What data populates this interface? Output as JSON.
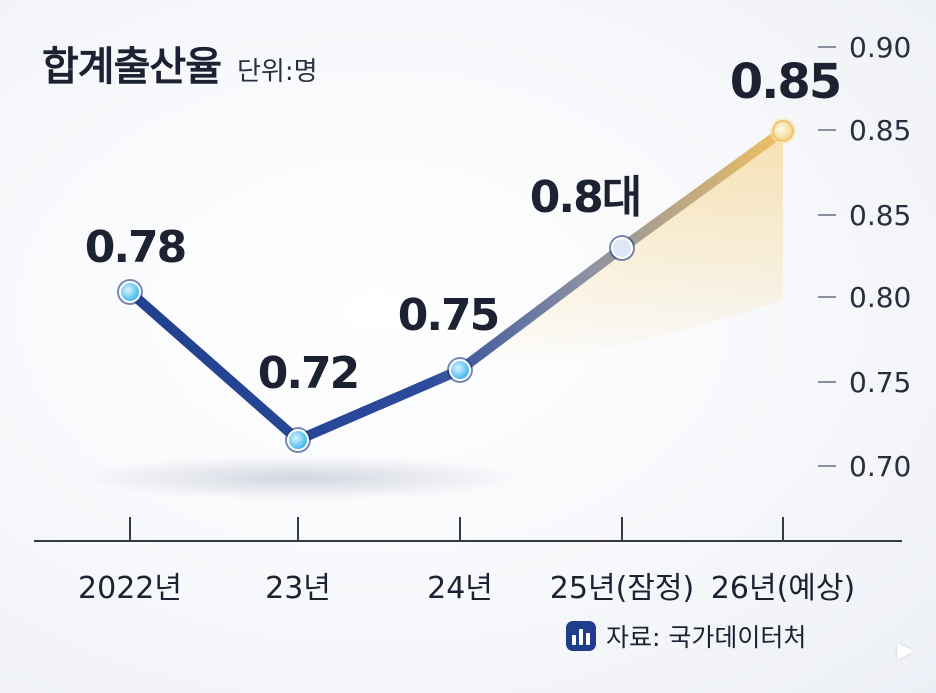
{
  "title": "합계출산율",
  "unit": "단위:명",
  "source": {
    "icon": "chart-bars-icon",
    "text": "자료: 국가데이터처"
  },
  "corner_icon": "play-arrow-icon",
  "colors": {
    "line_dark": "#22408f",
    "line_light": "#3d5aa8",
    "highlight": "#f0c060",
    "marker_fill": "#5bc8f5",
    "axis": "#333a48"
  },
  "chart_data": {
    "type": "line",
    "categories": [
      "2022년",
      "23년",
      "24년",
      "25년(잠정)",
      "26년(예상)"
    ],
    "values": [
      0.78,
      0.72,
      0.75,
      0.8,
      0.85
    ],
    "data_labels": [
      "0.78",
      "0.72",
      "0.75",
      "0.8대",
      "0.85"
    ],
    "y_tick_labels": [
      "0.70",
      "0.75",
      "0.80",
      "0.85",
      "0.85",
      "0.90"
    ],
    "xlabel": "",
    "ylabel": "",
    "grid": false,
    "legend": "none",
    "y_axis_side": "right"
  }
}
